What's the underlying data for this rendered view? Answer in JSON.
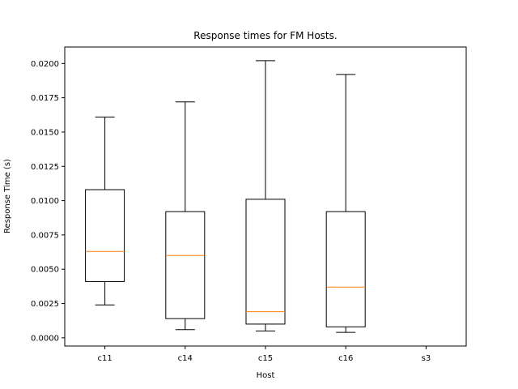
{
  "chart_data": {
    "type": "box",
    "title": "Response times for FM Hosts.",
    "xlabel": "Host",
    "ylabel": "Response Time (s)",
    "ylim": [
      -0.0006,
      0.0212
    ],
    "yticks": [
      "0.0000",
      "0.0025",
      "0.0050",
      "0.0075",
      "0.0100",
      "0.0125",
      "0.0150",
      "0.0175",
      "0.0200"
    ],
    "categories": [
      "c11",
      "c14",
      "c15",
      "c16",
      "s3"
    ],
    "boxes": [
      {
        "name": "c11",
        "whisker_low": 0.0024,
        "q1": 0.0041,
        "median": 0.0063,
        "q3": 0.0108,
        "whisker_high": 0.0161
      },
      {
        "name": "c14",
        "whisker_low": 0.0006,
        "q1": 0.0014,
        "median": 0.006,
        "q3": 0.0092,
        "whisker_high": 0.0172
      },
      {
        "name": "c15",
        "whisker_low": 0.0005,
        "q1": 0.001,
        "median": 0.0019,
        "q3": 0.0101,
        "whisker_high": 0.0202
      },
      {
        "name": "c16",
        "whisker_low": 0.0004,
        "q1": 0.0008,
        "median": 0.0037,
        "q3": 0.0092,
        "whisker_high": 0.0192
      },
      {
        "name": "s3"
      }
    ],
    "grid": false,
    "colors": {
      "box": "#000000",
      "median": "#ff7f0e"
    }
  }
}
